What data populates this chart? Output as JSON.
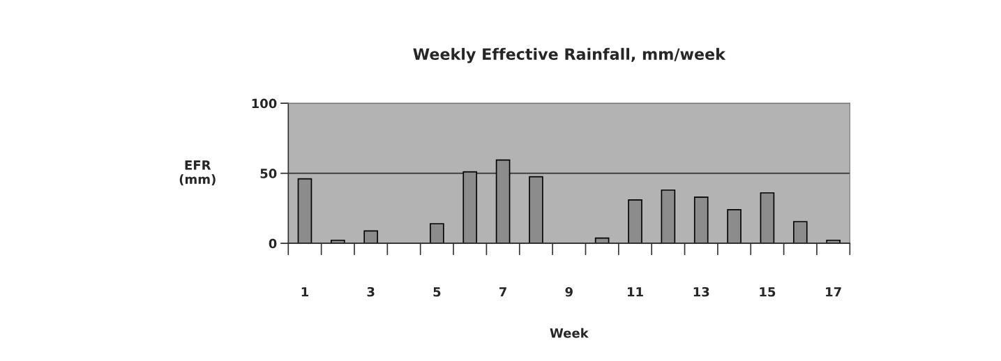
{
  "chart_data": {
    "type": "bar",
    "title": "Weekly Effective Rainfall, mm/week",
    "xlabel": "Week",
    "ylabel": "EFR\n(mm)",
    "categories": [
      "1",
      null,
      "3",
      null,
      "5",
      null,
      "7",
      null,
      "9",
      null,
      "11",
      null,
      "13",
      null,
      "15",
      null,
      "17"
    ],
    "values": [
      46,
      2.2,
      8.8,
      0,
      14,
      51,
      59.5,
      47.5,
      0,
      3.7,
      31,
      38,
      33,
      24,
      36,
      15.5,
      2.2
    ],
    "color": "#8c8c8c",
    "ylim": [
      0,
      100
    ],
    "yticks": [
      0,
      50,
      100
    ],
    "grid": "y",
    "legend": false
  }
}
